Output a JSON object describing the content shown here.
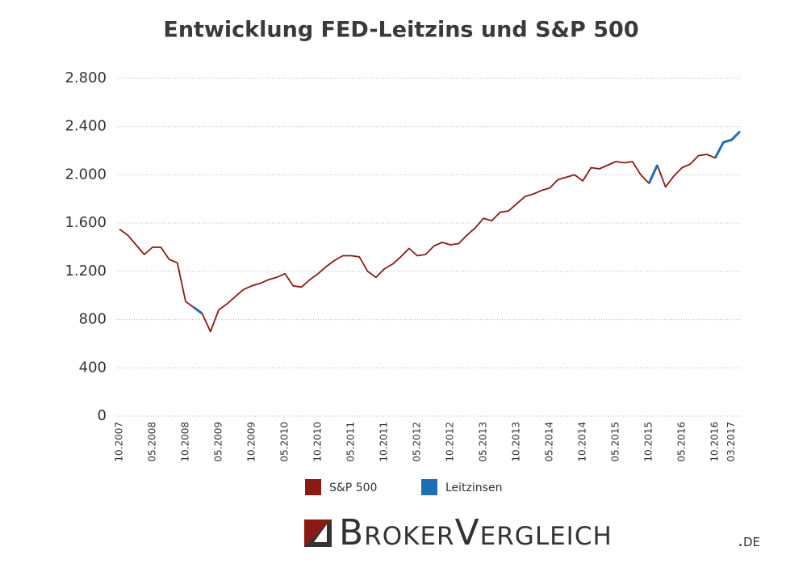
{
  "chart_data": {
    "type": "line",
    "title": "Entwicklung FED-Leitzins und S&P 500",
    "categories": [
      "10.2007",
      null,
      null,
      null,
      "05.2008",
      null,
      null,
      null,
      "10.2008",
      null,
      null,
      null,
      "05.2009",
      null,
      null,
      null,
      "10.2009",
      null,
      null,
      null,
      "05.2010",
      null,
      null,
      null,
      "10.2010",
      null,
      null,
      null,
      "05.2011",
      null,
      null,
      null,
      "10.2011",
      null,
      null,
      null,
      "05.2012",
      null,
      null,
      null,
      "10.2012",
      null,
      null,
      null,
      "05.2013",
      null,
      null,
      null,
      "10.2013",
      null,
      null,
      null,
      "05.2014",
      null,
      null,
      null,
      "10.2014",
      null,
      null,
      null,
      "05.2015",
      null,
      null,
      null,
      "10.2015",
      null,
      null,
      null,
      "05.2016",
      null,
      null,
      null,
      "10.2016",
      null,
      "03.2017",
      null
    ],
    "series": [
      {
        "name": "S&P 500",
        "color": "#8b1a14",
        "values": [
          1550,
          1500,
          1420,
          1340,
          1400,
          1400,
          1300,
          1270,
          950,
          900,
          850,
          700,
          880,
          930,
          990,
          1050,
          1080,
          1100,
          1130,
          1150,
          1180,
          1080,
          1070,
          1130,
          1180,
          1240,
          1290,
          1330,
          1330,
          1320,
          1200,
          1150,
          1220,
          1260,
          1320,
          1390,
          1330,
          1340,
          1410,
          1440,
          1420,
          1430,
          1500,
          1560,
          1640,
          1620,
          1690,
          1700,
          1760,
          1820,
          1840,
          1870,
          1890,
          1960,
          1980,
          2000,
          1950,
          2060,
          2050,
          2080,
          2110,
          2100,
          2110,
          2000,
          1930,
          2080,
          1900,
          1990,
          2060,
          2090,
          2160,
          2170,
          2140,
          2270,
          2290,
          2360
        ]
      },
      {
        "name": "Leitzinsen",
        "color": "#1a6fb5",
        "values": [
          null,
          null,
          null,
          null,
          null,
          null,
          null,
          null,
          null,
          900,
          850,
          null,
          null,
          null,
          null,
          null,
          null,
          null,
          null,
          null,
          null,
          null,
          null,
          null,
          null,
          null,
          null,
          null,
          null,
          null,
          null,
          null,
          null,
          null,
          null,
          null,
          null,
          null,
          null,
          null,
          null,
          null,
          null,
          null,
          null,
          null,
          null,
          null,
          null,
          null,
          null,
          null,
          null,
          null,
          null,
          null,
          null,
          null,
          null,
          null,
          null,
          null,
          null,
          null,
          1930,
          2080,
          null,
          null,
          null,
          null,
          null,
          null,
          2140,
          2270,
          2290,
          2360
        ]
      }
    ],
    "ylim": [
      0,
      2800
    ],
    "yticks": [
      0,
      400,
      800,
      {
        "value": 1200,
        "label": "1.200"
      },
      {
        "value": 1600,
        "label": "1.600"
      },
      {
        "value": 2000,
        "label": "2.000"
      },
      {
        "value": 2400,
        "label": "2.400"
      },
      {
        "value": 2800,
        "label": "2.800"
      }
    ],
    "grid": true,
    "legend": "bottom"
  },
  "logo": {
    "brand": "BrokerVergleich",
    "domain": ".de"
  }
}
